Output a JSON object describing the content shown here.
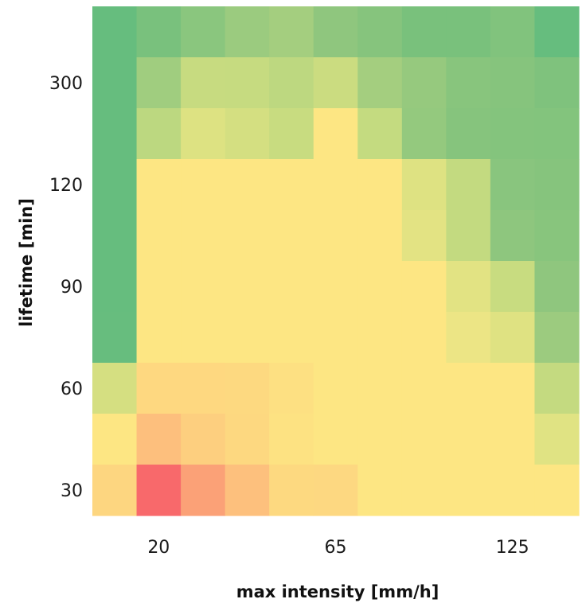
{
  "chart_data": {
    "type": "heatmap",
    "xlabel": "max intensity [mm/h]",
    "ylabel": "lifetime [min]",
    "x_tick_labels": [
      "20",
      "65",
      "125"
    ],
    "y_tick_labels": [
      "300",
      "120",
      "90",
      "60",
      "30"
    ],
    "x_tick_columns": [
      1,
      5,
      9
    ],
    "y_tick_rows": [
      1,
      3,
      5,
      7,
      9
    ],
    "n_columns": 11,
    "n_rows": 10,
    "grid": false,
    "legend": "none",
    "cell_colors": [
      [
        "#66bd7e",
        "#79c17d",
        "#8ac67e",
        "#9bcb7f",
        "#a4ce7f",
        "#8fc67e",
        "#86c47d",
        "#79c17c",
        "#79c17c",
        "#81c37d",
        "#66bd7e"
      ],
      [
        "#66bd7e",
        "#a0cd7f",
        "#c7db80",
        "#c6db80",
        "#bdd880",
        "#cbdc80",
        "#a4ce7f",
        "#96c97e",
        "#88c57d",
        "#86c47d",
        "#7fc27d"
      ],
      [
        "#66bd7e",
        "#bcd880",
        "#dde282",
        "#d4df81",
        "#c8dc80",
        "#fde683",
        "#c4db80",
        "#94c97e",
        "#86c47d",
        "#84c47d",
        "#83c47d"
      ],
      [
        "#66bd7e",
        "#fde683",
        "#fde683",
        "#fde683",
        "#fde683",
        "#fde683",
        "#fde683",
        "#dee282",
        "#c3da80",
        "#89c57e",
        "#86c47d"
      ],
      [
        "#66bd7e",
        "#fde683",
        "#fde683",
        "#fde683",
        "#fde683",
        "#fde683",
        "#fde683",
        "#e3e383",
        "#c3da80",
        "#8ec67e",
        "#88c57d"
      ],
      [
        "#66bd7e",
        "#fde683",
        "#fde683",
        "#fde683",
        "#fde683",
        "#fde683",
        "#fde683",
        "#fde683",
        "#e2e383",
        "#c8dc80",
        "#8fc67e"
      ],
      [
        "#67bd7e",
        "#fde683",
        "#fde683",
        "#fde683",
        "#fde683",
        "#fde683",
        "#fde683",
        "#fde683",
        "#ece585",
        "#dfe282",
        "#9ccb7f"
      ],
      [
        "#d5df81",
        "#fed880",
        "#fed880",
        "#fdd980",
        "#fde082",
        "#fde683",
        "#fde683",
        "#fde683",
        "#fde683",
        "#fde683",
        "#c4da80"
      ],
      [
        "#fde683",
        "#fdbf7d",
        "#fdcf7f",
        "#fdd880",
        "#fde282",
        "#fde683",
        "#fde683",
        "#fde683",
        "#fde683",
        "#fde683",
        "#e0e383"
      ],
      [
        "#fdd680",
        "#f8696b",
        "#fba177",
        "#fdc07d",
        "#fdd980",
        "#fdd881",
        "#fde683",
        "#fde683",
        "#fde683",
        "#fde683",
        "#fde683"
      ]
    ]
  }
}
